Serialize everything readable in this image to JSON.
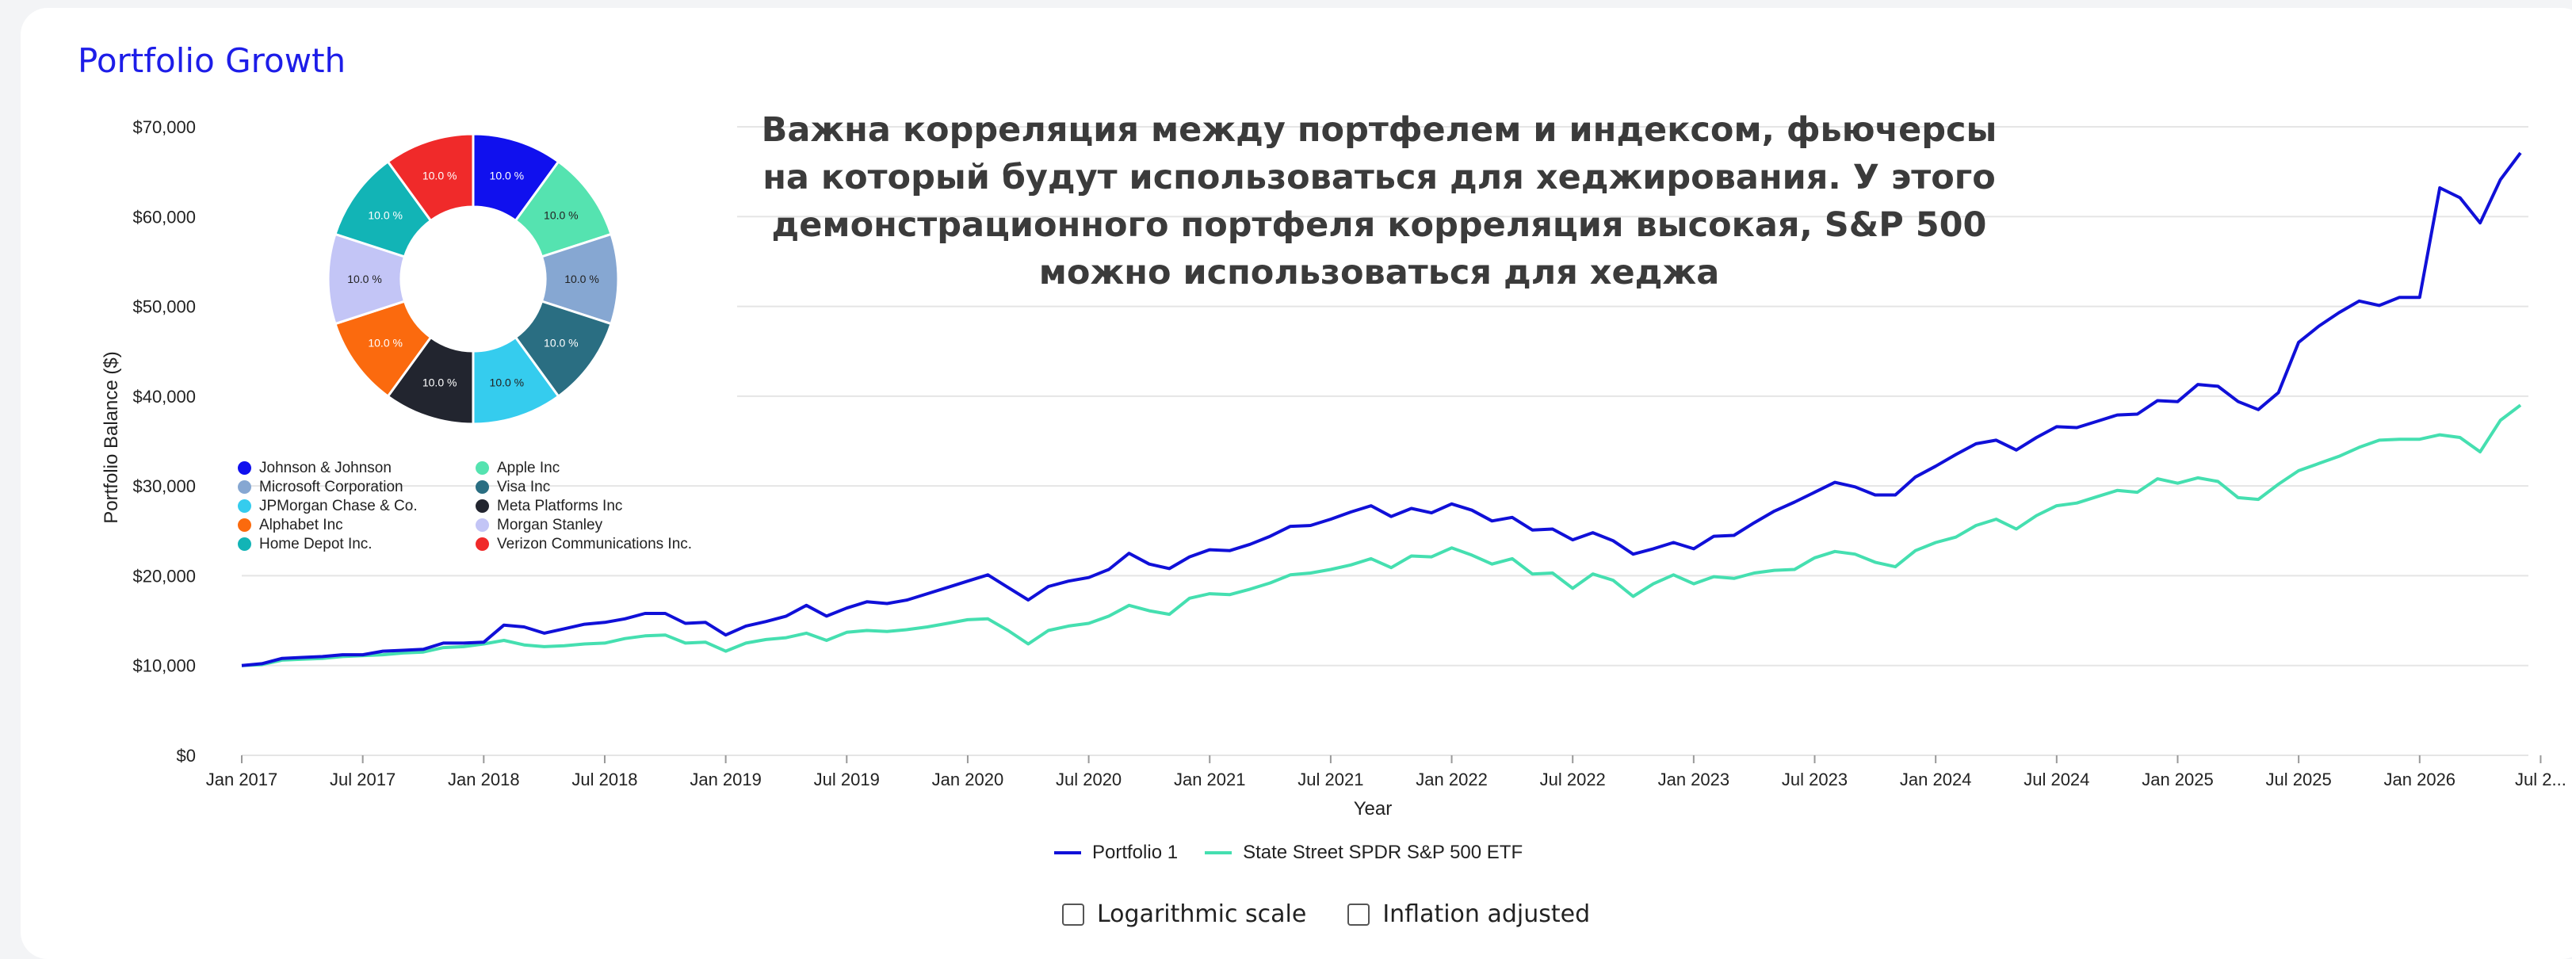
{
  "title": "Portfolio Growth",
  "annotation": "Важна корреляция между портфелем и индексом, фьючерсы на который будут использоваться для хеджирования. У этого демонстрационного портфеля корреляция высокая, S&P 500 можно использоваться для хеджа",
  "options": {
    "log_scale_label": "Logarithmic scale",
    "inflation_label": "Inflation adjusted",
    "log_scale_checked": false,
    "inflation_checked": false
  },
  "colors": {
    "portfolio": "#1010d8",
    "spy": "#45dfb0",
    "title": "#1d1de8"
  },
  "chart_data": [
    {
      "type": "line",
      "xlabel": "Year",
      "ylabel": "Portfolio Balance ($)",
      "ylim": [
        0,
        70000
      ],
      "y_ticks": [
        "$0",
        "$10,000",
        "$20,000",
        "$30,000",
        "$40,000",
        "$50,000",
        "$60,000",
        "$70,000"
      ],
      "x_ticks": [
        "Jan 2017",
        "Jul 2017",
        "Jan 2018",
        "Jul 2018",
        "Jan 2019",
        "Jul 2019",
        "Jan 2020",
        "Jul 2020",
        "Jan 2021",
        "Jul 2021",
        "Jan 2022",
        "Jul 2022",
        "Jan 2023",
        "Jul 2023",
        "Jan 2024",
        "Jul 2024",
        "Jan 2025",
        "Jul 2025",
        "Jan 2026",
        "Jul 2..."
      ],
      "grid": true,
      "legend_position": "bottom",
      "series": [
        {
          "name": "Portfolio 1",
          "color": "#1010d8",
          "values": [
            10000,
            10200,
            10800,
            10900,
            11000,
            11200,
            11200,
            11600,
            11700,
            11800,
            12500,
            12500,
            12600,
            14500,
            14300,
            13600,
            14100,
            14600,
            14800,
            15200,
            15800,
            15800,
            14700,
            14800,
            13400,
            14400,
            14900,
            15500,
            16700,
            15500,
            16400,
            17100,
            16900,
            17300,
            18000,
            18700,
            19400,
            20100,
            18700,
            17300,
            18800,
            19400,
            19800,
            20700,
            22500,
            21300,
            20800,
            22100,
            22900,
            22800,
            23500,
            24400,
            25500,
            25600,
            26300,
            27100,
            27800,
            26600,
            27500,
            27000,
            28000,
            27300,
            26100,
            26500,
            25100,
            25200,
            24000,
            24800,
            23900,
            22400,
            23000,
            23700,
            23000,
            24400,
            24500,
            25900,
            27200,
            28200,
            29300,
            30400,
            29900,
            29000,
            29000,
            31000,
            32200,
            33500,
            34700,
            35100,
            34000,
            35400,
            36600,
            36500,
            37200,
            37900,
            38000,
            39500,
            39400,
            41300,
            41100,
            39400,
            38500,
            40400,
            46000,
            47800,
            49300,
            50600,
            50100,
            51000,
            51000,
            63200,
            62100,
            59300,
            64100,
            67100
          ]
        },
        {
          "name": "State Street SPDR S&P 500 ETF",
          "color": "#45dfb0",
          "values": [
            10000,
            10100,
            10600,
            10700,
            10800,
            11000,
            11100,
            11200,
            11400,
            11500,
            12000,
            12100,
            12400,
            12800,
            12300,
            12100,
            12200,
            12400,
            12500,
            13000,
            13300,
            13400,
            12500,
            12600,
            11600,
            12500,
            12900,
            13100,
            13600,
            12800,
            13700,
            13900,
            13800,
            14000,
            14300,
            14700,
            15100,
            15200,
            13900,
            12400,
            13900,
            14400,
            14700,
            15500,
            16700,
            16100,
            15700,
            17500,
            18000,
            17900,
            18500,
            19200,
            20100,
            20300,
            20700,
            21200,
            21900,
            20900,
            22200,
            22100,
            23100,
            22300,
            21300,
            21900,
            20200,
            20300,
            18600,
            20200,
            19500,
            17700,
            19100,
            20100,
            19100,
            19900,
            19700,
            20300,
            20600,
            20700,
            22000,
            22700,
            22400,
            21500,
            21000,
            22800,
            23700,
            24300,
            25600,
            26300,
            25200,
            26700,
            27800,
            28100,
            28800,
            29500,
            29300,
            30800,
            30300,
            30900,
            30500,
            28700,
            28500,
            30200,
            31700,
            32500,
            33300,
            34300,
            35100,
            35200,
            35200,
            35700,
            35400,
            33800,
            37300,
            39000
          ]
        }
      ]
    },
    {
      "type": "pie",
      "slices": [
        {
          "label": "Johnson & Johnson",
          "value": 10.0,
          "text": "10.0 %",
          "color": "#1010ee"
        },
        {
          "label": "Apple Inc",
          "value": 10.0,
          "text": "10.0 %",
          "color": "#55e3b0"
        },
        {
          "label": "Microsoft Corporation",
          "value": 10.0,
          "text": "10.0 %",
          "color": "#86a7d2"
        },
        {
          "label": "Visa Inc",
          "value": 10.0,
          "text": "10.0 %",
          "color": "#2a6e82"
        },
        {
          "label": "JPMorgan Chase & Co.",
          "value": 10.0,
          "text": "10.0 %",
          "color": "#35ccee"
        },
        {
          "label": "Meta Platforms Inc",
          "value": 10.0,
          "text": "10.0 %",
          "color": "#22252f"
        },
        {
          "label": "Alphabet Inc",
          "value": 10.0,
          "text": "10.0 %",
          "color": "#fb6a0e"
        },
        {
          "label": "Morgan Stanley",
          "value": 10.0,
          "text": "10.0 %",
          "color": "#c3c5f6"
        },
        {
          "label": "Home Depot Inc.",
          "value": 10.0,
          "text": "10.0 %",
          "color": "#12b4b6"
        },
        {
          "label": "Verizon Communications Inc.",
          "value": 10.0,
          "text": "10.0 %",
          "color": "#f02a2a"
        }
      ]
    }
  ]
}
